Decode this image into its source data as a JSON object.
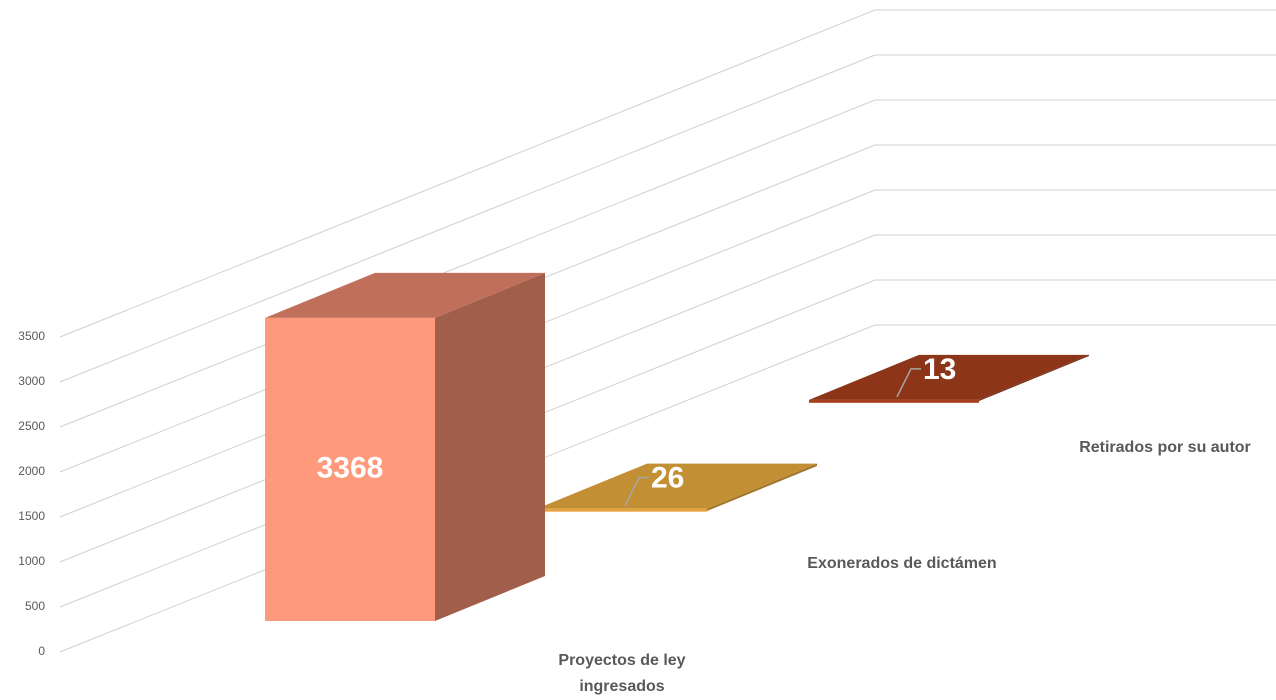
{
  "chart_data": {
    "type": "bar3d",
    "categories": [
      "Proyectos de ley ingresados",
      "Exonerados de dictámen",
      "Retirados por su autor"
    ],
    "values": [
      3368,
      26,
      13
    ],
    "colors": [
      [
        "#fe997b",
        "#c0705a",
        "#a05e4b"
      ],
      [
        "#e6a33c",
        "#c38f35",
        "#a0762c"
      ],
      [
        "#a8401f",
        "#8d3519",
        "#6e2a14"
      ]
    ],
    "ylim": [
      0,
      3500
    ],
    "yticks": [
      0,
      500,
      1000,
      1500,
      2000,
      2500,
      3000,
      3500
    ],
    "grid": true
  }
}
